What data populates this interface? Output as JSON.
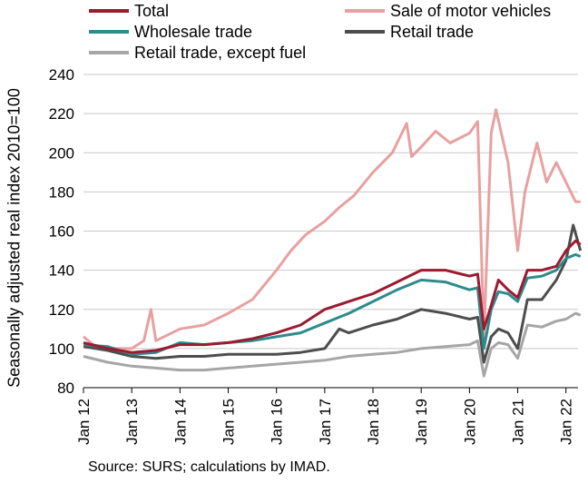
{
  "chart_data": {
    "type": "line",
    "ylabel": "Seasonally adjusted real index 2010=100",
    "source": "Source: SURS; calculations by IMAD.",
    "ylim": [
      80,
      240
    ],
    "yticks": [
      80,
      100,
      120,
      140,
      160,
      180,
      200,
      220,
      240
    ],
    "xticks": [
      "Jan 12",
      "Jan 13",
      "Jan 14",
      "Jan 15",
      "Jan 16",
      "Jan 17",
      "Jan 18",
      "Jan 19",
      "Jan 20",
      "Jan 21",
      "Jan 22"
    ],
    "grid": true,
    "legend_position": "top",
    "x_start": "2012-01",
    "x_end": "2022-04",
    "series": [
      {
        "name": "Total",
        "color": "#9b1b30",
        "values": [
          [
            2012.0,
            103
          ],
          [
            2012.5,
            100
          ],
          [
            2013.0,
            98
          ],
          [
            2013.5,
            99
          ],
          [
            2014.0,
            102
          ],
          [
            2014.5,
            102
          ],
          [
            2015.0,
            103
          ],
          [
            2015.5,
            105
          ],
          [
            2016.0,
            108
          ],
          [
            2016.5,
            112
          ],
          [
            2017.0,
            120
          ],
          [
            2017.5,
            124
          ],
          [
            2018.0,
            128
          ],
          [
            2018.5,
            134
          ],
          [
            2019.0,
            140
          ],
          [
            2019.5,
            140
          ],
          [
            2020.0,
            137
          ],
          [
            2020.17,
            138
          ],
          [
            2020.3,
            110
          ],
          [
            2020.45,
            122
          ],
          [
            2020.6,
            135
          ],
          [
            2020.8,
            130
          ],
          [
            2021.0,
            126
          ],
          [
            2021.2,
            140
          ],
          [
            2021.5,
            140
          ],
          [
            2021.8,
            142
          ],
          [
            2022.0,
            150
          ],
          [
            2022.2,
            155
          ],
          [
            2022.3,
            153
          ]
        ]
      },
      {
        "name": "Sale of motor vehicles",
        "color": "#e8a0a0",
        "values": [
          [
            2012.0,
            106
          ],
          [
            2012.2,
            102
          ],
          [
            2012.5,
            100
          ],
          [
            2013.0,
            100
          ],
          [
            2013.25,
            104
          ],
          [
            2013.4,
            120
          ],
          [
            2013.5,
            104
          ],
          [
            2014.0,
            110
          ],
          [
            2014.5,
            112
          ],
          [
            2015.0,
            118
          ],
          [
            2015.5,
            125
          ],
          [
            2016.0,
            140
          ],
          [
            2016.3,
            150
          ],
          [
            2016.6,
            158
          ],
          [
            2017.0,
            165
          ],
          [
            2017.3,
            172
          ],
          [
            2017.6,
            178
          ],
          [
            2018.0,
            190
          ],
          [
            2018.4,
            200
          ],
          [
            2018.7,
            215
          ],
          [
            2018.8,
            198
          ],
          [
            2019.0,
            203
          ],
          [
            2019.3,
            211
          ],
          [
            2019.6,
            205
          ],
          [
            2020.0,
            210
          ],
          [
            2020.17,
            216
          ],
          [
            2020.3,
            105
          ],
          [
            2020.45,
            210
          ],
          [
            2020.55,
            222
          ],
          [
            2020.8,
            195
          ],
          [
            2021.0,
            150
          ],
          [
            2021.15,
            180
          ],
          [
            2021.4,
            205
          ],
          [
            2021.6,
            185
          ],
          [
            2021.8,
            195
          ],
          [
            2022.0,
            185
          ],
          [
            2022.2,
            175
          ],
          [
            2022.3,
            175
          ]
        ]
      },
      {
        "name": "Wholesale trade",
        "color": "#2e8b8b",
        "values": [
          [
            2012.0,
            102
          ],
          [
            2012.5,
            101
          ],
          [
            2013.0,
            97
          ],
          [
            2013.5,
            98
          ],
          [
            2014.0,
            103
          ],
          [
            2014.5,
            102
          ],
          [
            2015.0,
            103
          ],
          [
            2015.5,
            104
          ],
          [
            2016.0,
            106
          ],
          [
            2016.5,
            108
          ],
          [
            2017.0,
            113
          ],
          [
            2017.5,
            118
          ],
          [
            2018.0,
            124
          ],
          [
            2018.5,
            130
          ],
          [
            2019.0,
            135
          ],
          [
            2019.5,
            134
          ],
          [
            2020.0,
            130
          ],
          [
            2020.17,
            131
          ],
          [
            2020.3,
            100
          ],
          [
            2020.45,
            120
          ],
          [
            2020.6,
            129
          ],
          [
            2020.8,
            128
          ],
          [
            2021.0,
            124
          ],
          [
            2021.2,
            136
          ],
          [
            2021.5,
            137
          ],
          [
            2021.8,
            140
          ],
          [
            2022.0,
            146
          ],
          [
            2022.2,
            148
          ],
          [
            2022.3,
            147
          ]
        ]
      },
      {
        "name": "Retail trade",
        "color": "#4d4d4d",
        "values": [
          [
            2012.0,
            101
          ],
          [
            2012.5,
            99
          ],
          [
            2013.0,
            96
          ],
          [
            2013.5,
            95
          ],
          [
            2014.0,
            96
          ],
          [
            2014.5,
            96
          ],
          [
            2015.0,
            97
          ],
          [
            2015.5,
            97
          ],
          [
            2016.0,
            97
          ],
          [
            2016.5,
            98
          ],
          [
            2017.0,
            100
          ],
          [
            2017.3,
            110
          ],
          [
            2017.5,
            108
          ],
          [
            2018.0,
            112
          ],
          [
            2018.5,
            115
          ],
          [
            2019.0,
            120
          ],
          [
            2019.5,
            118
          ],
          [
            2020.0,
            115
          ],
          [
            2020.17,
            116
          ],
          [
            2020.3,
            93
          ],
          [
            2020.45,
            106
          ],
          [
            2020.6,
            110
          ],
          [
            2020.8,
            108
          ],
          [
            2021.0,
            100
          ],
          [
            2021.2,
            125
          ],
          [
            2021.5,
            125
          ],
          [
            2021.8,
            135
          ],
          [
            2022.0,
            145
          ],
          [
            2022.15,
            163
          ],
          [
            2022.3,
            150
          ]
        ]
      },
      {
        "name": "Retail trade, except fuel",
        "color": "#a6a6a6",
        "values": [
          [
            2012.0,
            96
          ],
          [
            2012.5,
            93
          ],
          [
            2013.0,
            91
          ],
          [
            2013.5,
            90
          ],
          [
            2014.0,
            89
          ],
          [
            2014.5,
            89
          ],
          [
            2015.0,
            90
          ],
          [
            2015.5,
            91
          ],
          [
            2016.0,
            92
          ],
          [
            2016.5,
            93
          ],
          [
            2017.0,
            94
          ],
          [
            2017.5,
            96
          ],
          [
            2018.0,
            97
          ],
          [
            2018.5,
            98
          ],
          [
            2019.0,
            100
          ],
          [
            2019.5,
            101
          ],
          [
            2020.0,
            102
          ],
          [
            2020.17,
            104
          ],
          [
            2020.3,
            86
          ],
          [
            2020.45,
            100
          ],
          [
            2020.6,
            103
          ],
          [
            2020.8,
            102
          ],
          [
            2021.0,
            95
          ],
          [
            2021.2,
            112
          ],
          [
            2021.5,
            111
          ],
          [
            2021.8,
            114
          ],
          [
            2022.0,
            115
          ],
          [
            2022.2,
            118
          ],
          [
            2022.3,
            117
          ]
        ]
      }
    ]
  }
}
